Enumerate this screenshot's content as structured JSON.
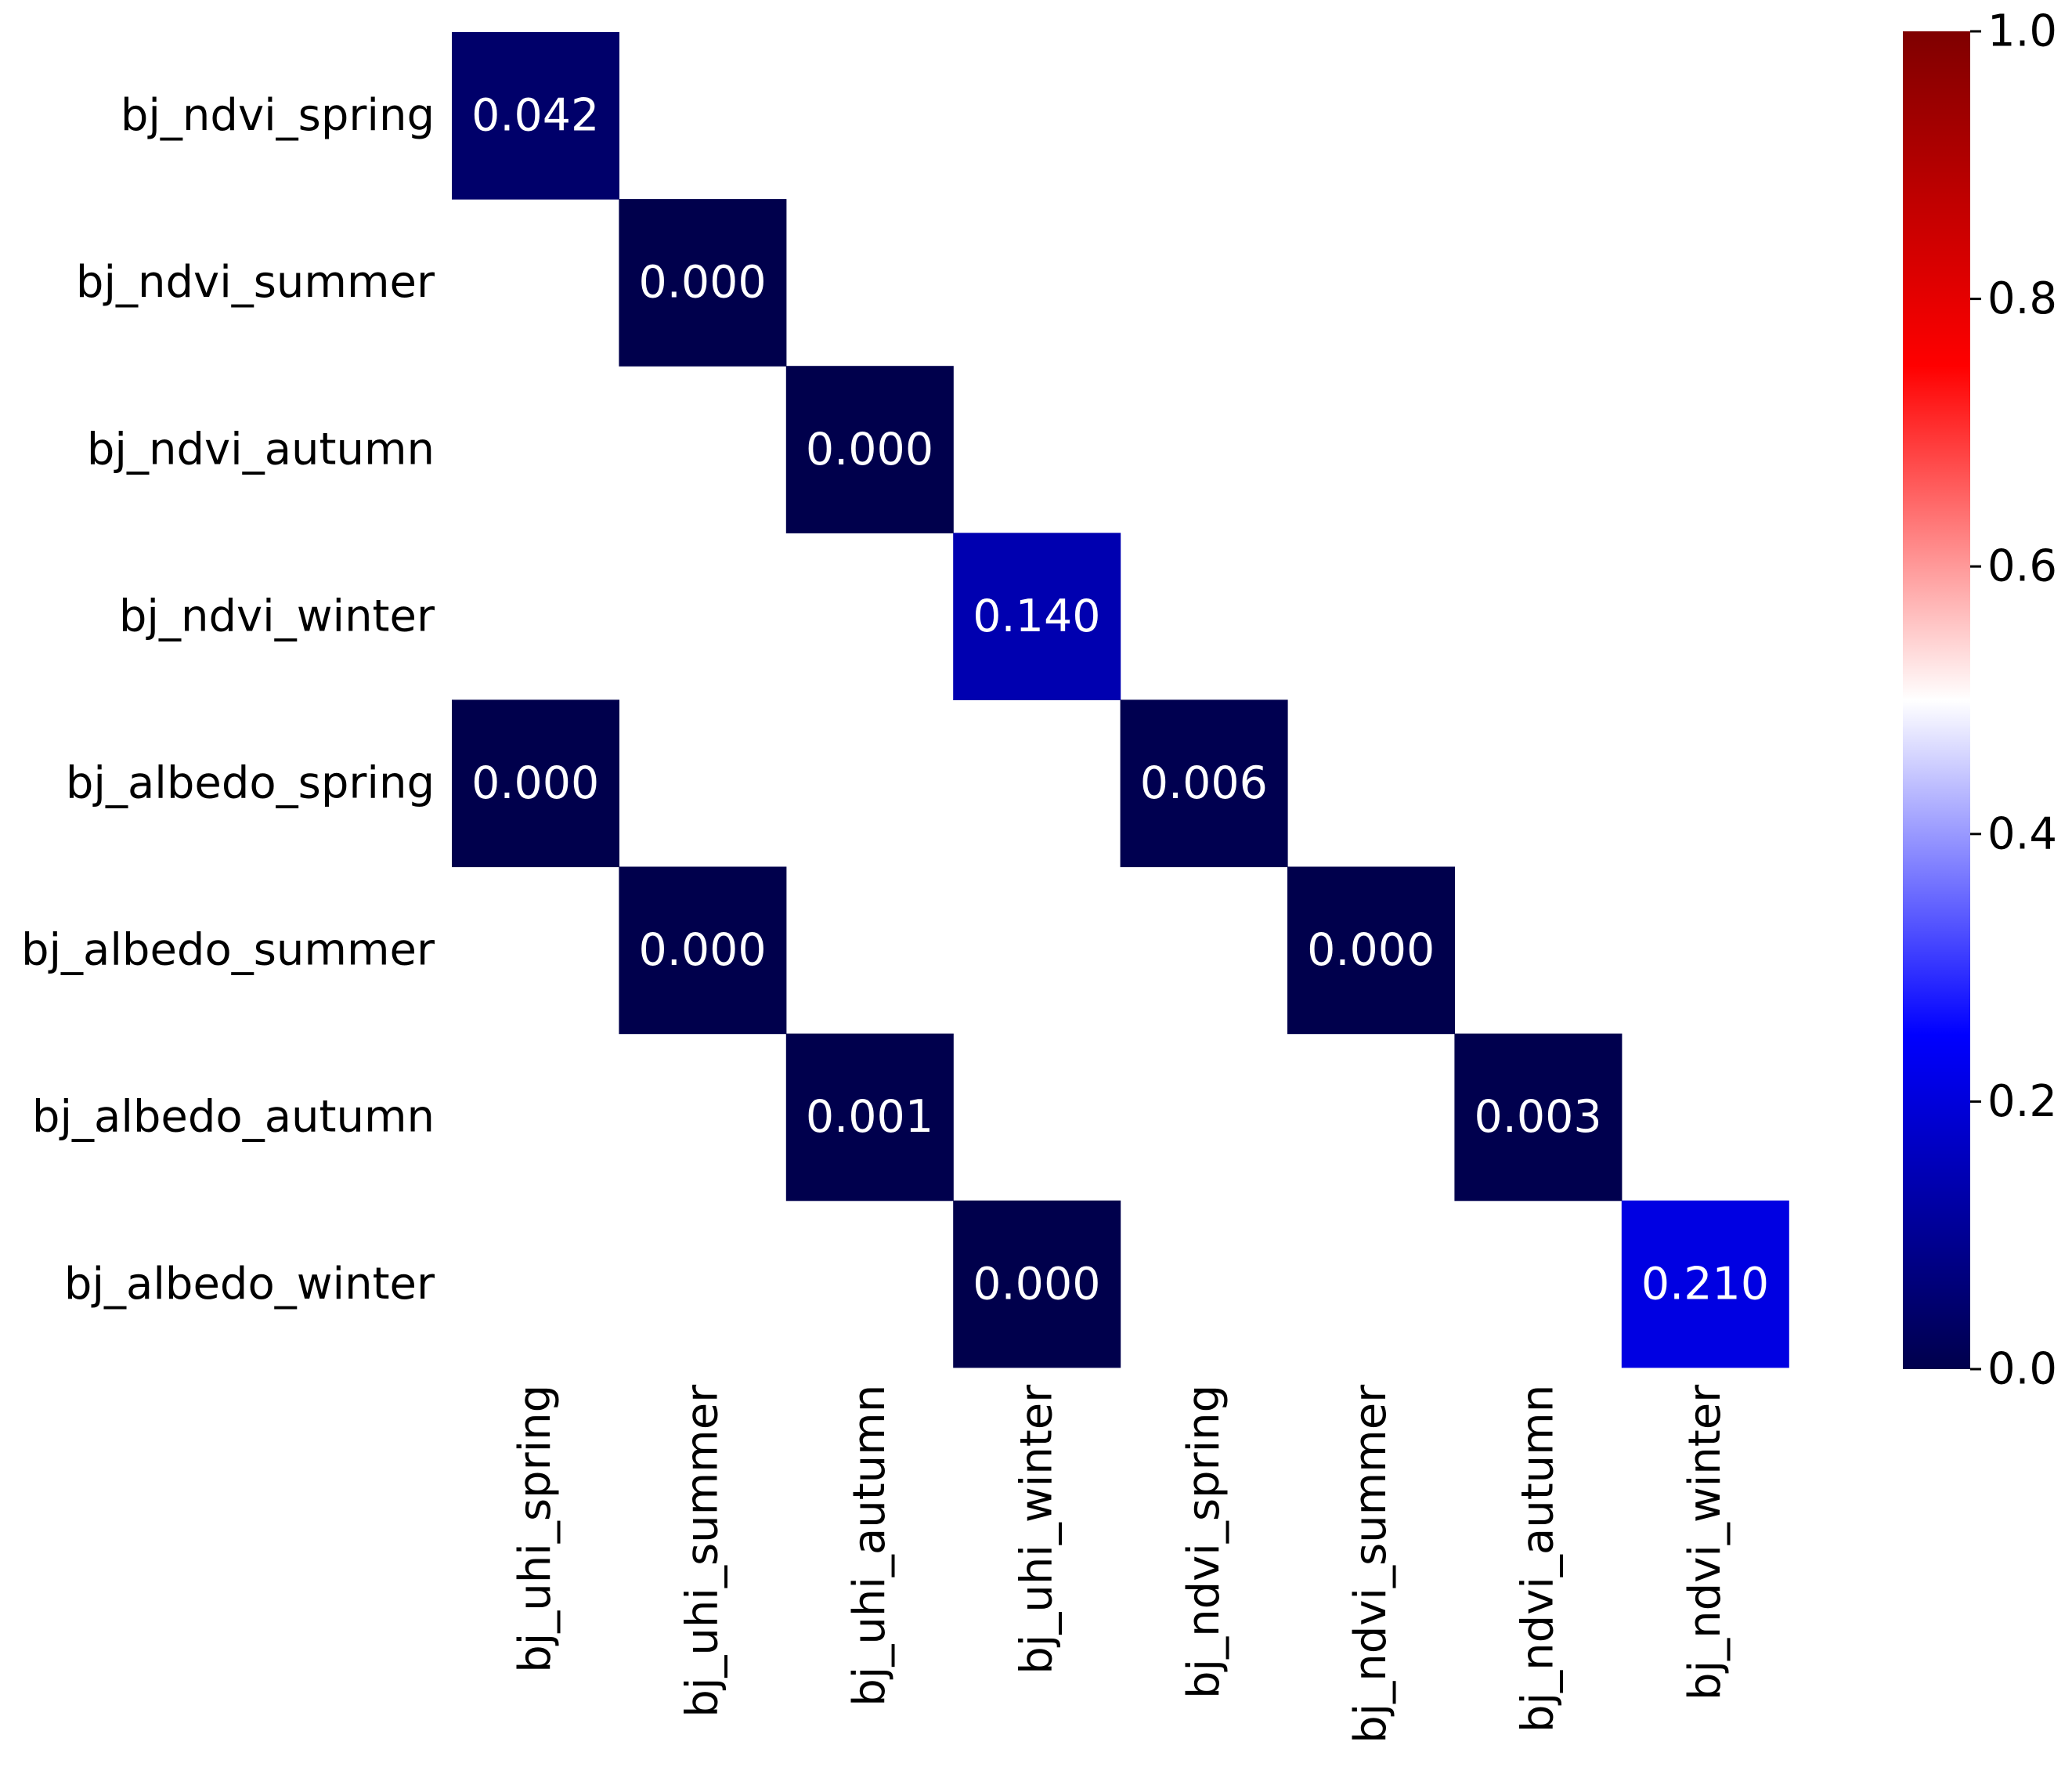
{
  "chart_data": {
    "type": "heatmap",
    "title": "",
    "xlabel": "",
    "ylabel": "",
    "row_labels": [
      "bj_ndvi_spring",
      "bj_ndvi_summer",
      "bj_ndvi_autumn",
      "bj_ndvi_winter",
      "bj_albedo_spring",
      "bj_albedo_summer",
      "bj_albedo_autumn",
      "bj_albedo_winter"
    ],
    "column_labels": [
      "bj_uhi_spring",
      "bj_uhi_summer",
      "bj_uhi_autumn",
      "bj_uhi_winter",
      "bj_ndvi_spring",
      "bj_ndvi_summer",
      "bj_ndvi_autumn",
      "bj_ndvi_winter"
    ],
    "cells": [
      {
        "row": 0,
        "col": 0,
        "value": 0.042,
        "label": "0.042"
      },
      {
        "row": 1,
        "col": 1,
        "value": 0.0,
        "label": "0.000"
      },
      {
        "row": 2,
        "col": 2,
        "value": 0.0,
        "label": "0.000"
      },
      {
        "row": 3,
        "col": 3,
        "value": 0.14,
        "label": "0.140"
      },
      {
        "row": 4,
        "col": 0,
        "value": 0.0,
        "label": "0.000"
      },
      {
        "row": 4,
        "col": 4,
        "value": 0.006,
        "label": "0.006"
      },
      {
        "row": 5,
        "col": 1,
        "value": 0.0,
        "label": "0.000"
      },
      {
        "row": 5,
        "col": 5,
        "value": 0.0,
        "label": "0.000"
      },
      {
        "row": 6,
        "col": 2,
        "value": 0.001,
        "label": "0.001"
      },
      {
        "row": 6,
        "col": 6,
        "value": 0.003,
        "label": "0.003"
      },
      {
        "row": 7,
        "col": 3,
        "value": 0.0,
        "label": "0.000"
      },
      {
        "row": 7,
        "col": 7,
        "value": 0.21,
        "label": "0.210"
      }
    ],
    "colormap": "seismic",
    "colormap_stops": [
      "#00004c",
      "#0000ff",
      "#ffffff",
      "#ff0000",
      "#7f0000"
    ],
    "vmin": 0.0,
    "vmax": 1.0,
    "colorbar_ticks": [
      {
        "value": 0.0,
        "label": "0.0"
      },
      {
        "value": 0.2,
        "label": "0.2"
      },
      {
        "value": 0.4,
        "label": "0.4"
      },
      {
        "value": 0.6,
        "label": "0.6"
      },
      {
        "value": 0.8,
        "label": "0.8"
      },
      {
        "value": 1.0,
        "label": "1.0"
      }
    ],
    "annotation_color": "#ffffff",
    "legend": "colorbar-right"
  }
}
